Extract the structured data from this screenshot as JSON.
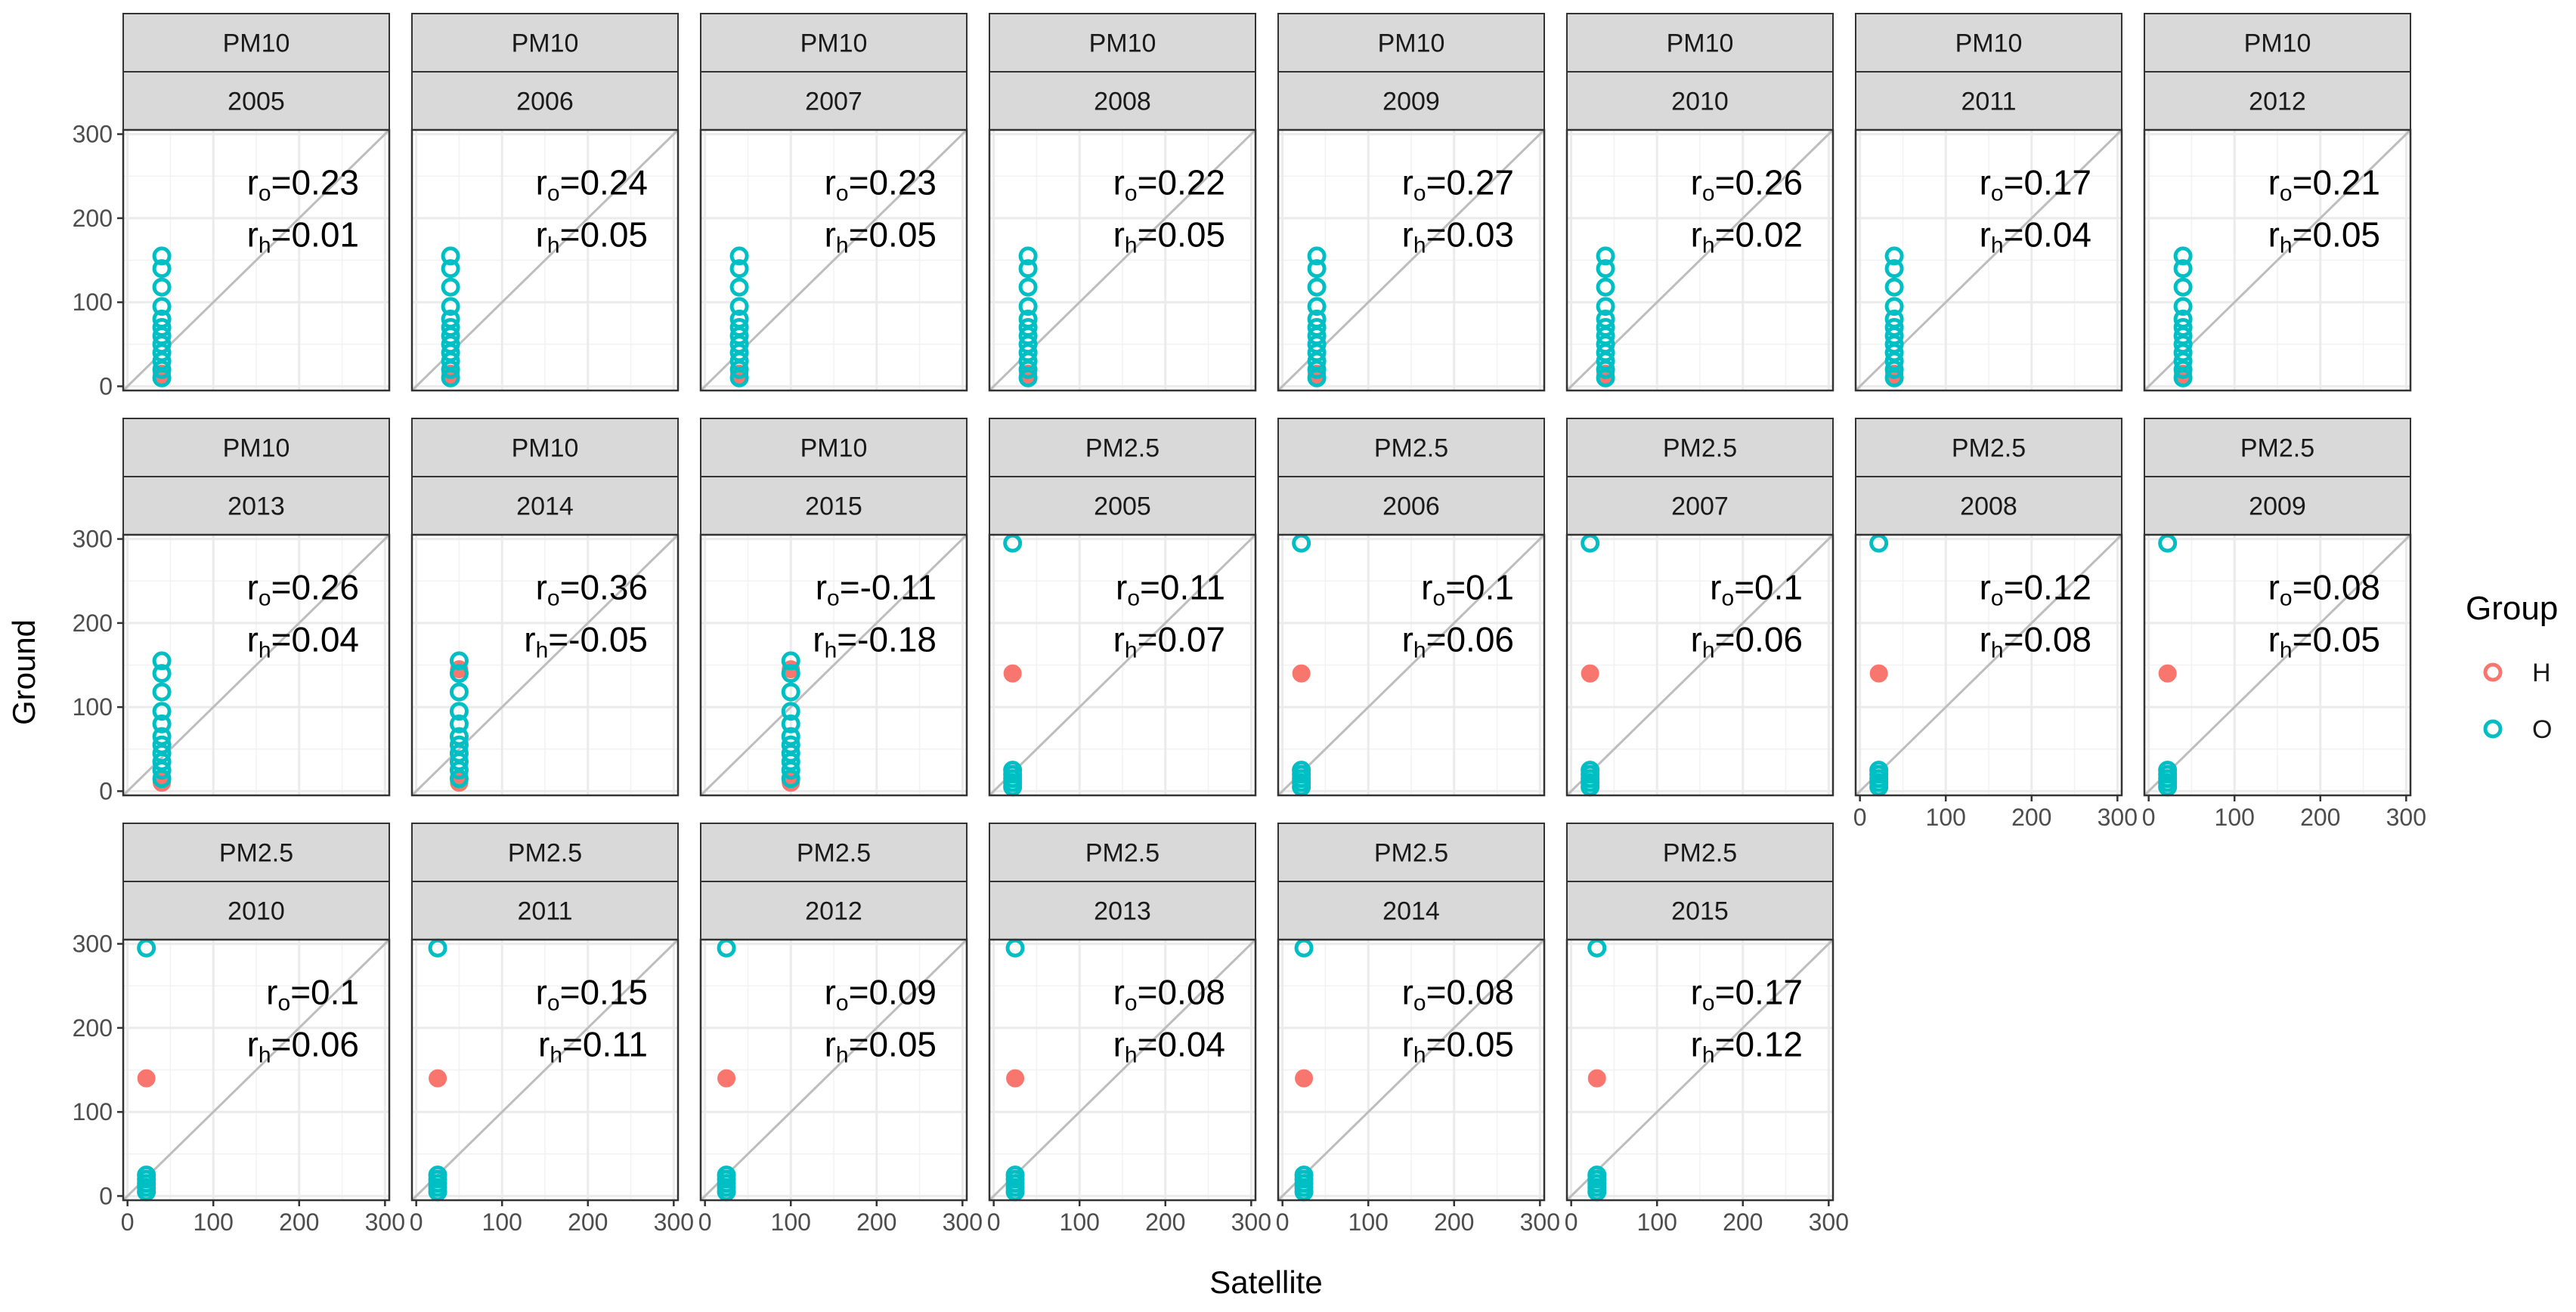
{
  "chart_data": {
    "type": "scatter",
    "layout": "facet-grid 3x8, strips: pollutant / year",
    "xlabel": "Satellite",
    "ylabel": "Ground",
    "xlim": [
      -5,
      305
    ],
    "ylim": [
      -5,
      305
    ],
    "x_ticks": [
      0,
      100,
      200,
      300
    ],
    "y_ticks": [
      0,
      100,
      200,
      300
    ],
    "reference_line": "y = x",
    "legend": {
      "title": "Group",
      "position": "right",
      "entries": [
        {
          "name": "H",
          "color": "#F8766D"
        },
        {
          "name": "O",
          "color": "#00BFC4"
        }
      ]
    },
    "annotation_labels": {
      "ro": "r",
      "ro_sub": "o",
      "rh": "r",
      "rh_sub": "h"
    },
    "panels": [
      {
        "pollutant": "PM10",
        "year": "2005",
        "r_o": "0.23",
        "r_h": "0.01",
        "sat_o": 40,
        "sat_h": 40,
        "o_y": [
          10,
          20,
          30,
          40,
          50,
          60,
          70,
          80,
          95,
          118,
          140,
          155
        ],
        "h_y": [
          10,
          12,
          15
        ]
      },
      {
        "pollutant": "PM10",
        "year": "2006",
        "r_o": "0.24",
        "r_h": "0.05",
        "sat_o": 40,
        "sat_h": 40,
        "o_y": [
          10,
          20,
          30,
          40,
          50,
          60,
          70,
          80,
          95,
          118,
          140,
          155
        ],
        "h_y": [
          10,
          12,
          15
        ]
      },
      {
        "pollutant": "PM10",
        "year": "2007",
        "r_o": "0.23",
        "r_h": "0.05",
        "sat_o": 40,
        "sat_h": 40,
        "o_y": [
          10,
          20,
          30,
          40,
          50,
          60,
          70,
          80,
          95,
          118,
          140,
          155
        ],
        "h_y": [
          10,
          12,
          15
        ]
      },
      {
        "pollutant": "PM10",
        "year": "2008",
        "r_o": "0.22",
        "r_h": "0.05",
        "sat_o": 40,
        "sat_h": 40,
        "o_y": [
          10,
          20,
          30,
          40,
          50,
          60,
          70,
          80,
          95,
          118,
          140,
          155
        ],
        "h_y": [
          10,
          12,
          15
        ]
      },
      {
        "pollutant": "PM10",
        "year": "2009",
        "r_o": "0.27",
        "r_h": "0.03",
        "sat_o": 40,
        "sat_h": 40,
        "o_y": [
          10,
          20,
          30,
          40,
          50,
          60,
          70,
          80,
          95,
          118,
          140,
          155
        ],
        "h_y": [
          10,
          12,
          15
        ]
      },
      {
        "pollutant": "PM10",
        "year": "2010",
        "r_o": "0.26",
        "r_h": "0.02",
        "sat_o": 40,
        "sat_h": 40,
        "o_y": [
          10,
          20,
          30,
          40,
          50,
          60,
          70,
          80,
          95,
          118,
          140,
          155
        ],
        "h_y": [
          10,
          12,
          15
        ]
      },
      {
        "pollutant": "PM10",
        "year": "2011",
        "r_o": "0.17",
        "r_h": "0.04",
        "sat_o": 40,
        "sat_h": 40,
        "o_y": [
          10,
          20,
          30,
          40,
          50,
          60,
          70,
          80,
          95,
          118,
          140,
          155
        ],
        "h_y": [
          10,
          12,
          15
        ]
      },
      {
        "pollutant": "PM10",
        "year": "2012",
        "r_o": "0.21",
        "r_h": "0.05",
        "sat_o": 40,
        "sat_h": 40,
        "o_y": [
          10,
          20,
          30,
          40,
          50,
          60,
          70,
          80,
          95,
          118,
          140,
          155
        ],
        "h_y": [
          10,
          12,
          15
        ]
      },
      {
        "pollutant": "PM10",
        "year": "2013",
        "r_o": "0.26",
        "r_h": "0.04",
        "sat_o": 40,
        "sat_h": 40,
        "o_y": [
          15,
          25,
          35,
          45,
          55,
          65,
          80,
          95,
          118,
          140,
          155
        ],
        "h_y": [
          10,
          12,
          15
        ]
      },
      {
        "pollutant": "PM10",
        "year": "2014",
        "r_o": "0.36",
        "r_h": "-0.05",
        "sat_o": 50,
        "sat_h": 50,
        "o_y": [
          15,
          25,
          35,
          45,
          55,
          65,
          80,
          95,
          118,
          140,
          155
        ],
        "h_y": [
          10,
          12,
          15,
          145
        ]
      },
      {
        "pollutant": "PM10",
        "year": "2015",
        "r_o": "-0.11",
        "r_h": "-0.18",
        "sat_o": 100,
        "sat_h": 100,
        "o_y": [
          15,
          25,
          35,
          45,
          55,
          65,
          80,
          95,
          118,
          140,
          155
        ],
        "h_y": [
          10,
          12,
          15,
          145
        ]
      },
      {
        "pollutant": "PM2.5",
        "year": "2005",
        "r_o": "0.11",
        "r_h": "0.07",
        "sat_o": 22,
        "sat_h": 22,
        "o_y": [
          5,
          10,
          15,
          20,
          25,
          295
        ],
        "h_y": [
          140
        ]
      },
      {
        "pollutant": "PM2.5",
        "year": "2006",
        "r_o": "0.1",
        "r_h": "0.06",
        "sat_o": 22,
        "sat_h": 22,
        "o_y": [
          5,
          10,
          15,
          20,
          25,
          295
        ],
        "h_y": [
          140
        ]
      },
      {
        "pollutant": "PM2.5",
        "year": "2007",
        "r_o": "0.1",
        "r_h": "0.06",
        "sat_o": 22,
        "sat_h": 22,
        "o_y": [
          5,
          10,
          15,
          20,
          25,
          295
        ],
        "h_y": [
          140
        ]
      },
      {
        "pollutant": "PM2.5",
        "year": "2008",
        "r_o": "0.12",
        "r_h": "0.08",
        "sat_o": 22,
        "sat_h": 22,
        "o_y": [
          5,
          10,
          15,
          20,
          25,
          295
        ],
        "h_y": [
          140
        ]
      },
      {
        "pollutant": "PM2.5",
        "year": "2009",
        "r_o": "0.08",
        "r_h": "0.05",
        "sat_o": 22,
        "sat_h": 22,
        "o_y": [
          5,
          10,
          15,
          20,
          25,
          295
        ],
        "h_y": [
          140
        ]
      },
      {
        "pollutant": "PM2.5",
        "year": "2010",
        "r_o": "0.1",
        "r_h": "0.06",
        "sat_o": 22,
        "sat_h": 22,
        "o_y": [
          5,
          10,
          15,
          20,
          25,
          295
        ],
        "h_y": [
          140
        ]
      },
      {
        "pollutant": "PM2.5",
        "year": "2011",
        "r_o": "0.15",
        "r_h": "0.11",
        "sat_o": 25,
        "sat_h": 25,
        "o_y": [
          5,
          10,
          15,
          20,
          25,
          295
        ],
        "h_y": [
          140
        ]
      },
      {
        "pollutant": "PM2.5",
        "year": "2012",
        "r_o": "0.09",
        "r_h": "0.05",
        "sat_o": 25,
        "sat_h": 25,
        "o_y": [
          5,
          10,
          15,
          20,
          25,
          295
        ],
        "h_y": [
          140
        ]
      },
      {
        "pollutant": "PM2.5",
        "year": "2013",
        "r_o": "0.08",
        "r_h": "0.04",
        "sat_o": 25,
        "sat_h": 25,
        "o_y": [
          5,
          10,
          15,
          20,
          25,
          295
        ],
        "h_y": [
          140
        ]
      },
      {
        "pollutant": "PM2.5",
        "year": "2014",
        "r_o": "0.08",
        "r_h": "0.05",
        "sat_o": 25,
        "sat_h": 25,
        "o_y": [
          5,
          10,
          15,
          20,
          25,
          295
        ],
        "h_y": [
          140
        ]
      },
      {
        "pollutant": "PM2.5",
        "year": "2015",
        "r_o": "0.17",
        "r_h": "0.12",
        "sat_o": 30,
        "sat_h": 30,
        "o_y": [
          5,
          10,
          15,
          20,
          25,
          295
        ],
        "h_y": [
          140
        ]
      }
    ]
  }
}
